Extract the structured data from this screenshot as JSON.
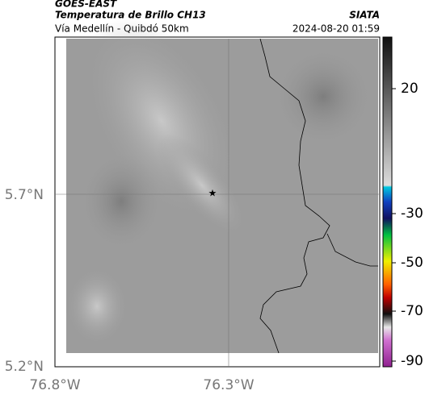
{
  "header": {
    "title": "GOES-EAST",
    "subtitle": "Temperatura de Brillo CH13",
    "source": "SIATA",
    "region": "Vía Medellín - Quibdó 50km",
    "datetime": "2024-08-20 01:59"
  },
  "map": {
    "lat_labels": [
      "5.7°N",
      "5.2°N"
    ],
    "lon_labels": [
      "76.8°W",
      "76.3°W"
    ]
  },
  "colorbar": {
    "tick_labels": [
      "20",
      "-30",
      "-50",
      "-70",
      "-90"
    ]
  }
}
